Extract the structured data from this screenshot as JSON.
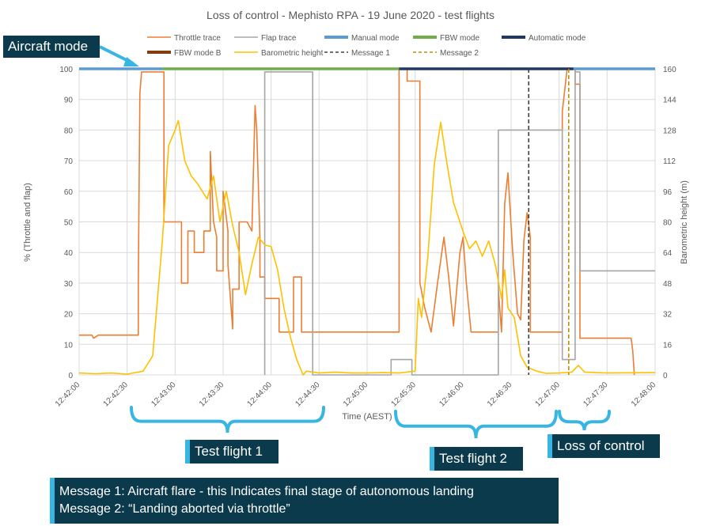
{
  "chart_data": {
    "type": "line",
    "title": "Loss of control - Mephisto RPA - 19 June 2020 - test flights",
    "xlabel": "Time (AEST)",
    "ylabel": "% (Throttle and flap)",
    "y2label": "Barometric height (m)",
    "xlim": [
      "12:42:00",
      "12:48:00"
    ],
    "ylim": [
      0,
      100
    ],
    "y2lim": [
      0,
      160
    ],
    "x_ticks": [
      "12:42:00",
      "12:42:30",
      "12:43:00",
      "12:43:30",
      "12:44:00",
      "12:44:30",
      "12:45:00",
      "12:45:30",
      "12:46:00",
      "12:46:30",
      "12:47:00",
      "12:47:30",
      "12:48:00"
    ],
    "y_ticks": [
      "0",
      "10",
      "20",
      "30",
      "40",
      "50",
      "60",
      "70",
      "80",
      "90",
      "100"
    ],
    "y2_ticks": [
      "0",
      "16",
      "32",
      "48",
      "64",
      "80",
      "96",
      "112",
      "128",
      "144",
      "160"
    ],
    "grid": true,
    "legend_position": "top",
    "series": [
      {
        "name": "Throttle trace",
        "color": "#ed7d31",
        "axis": "left",
        "points": [
          [
            "12:42:00",
            13
          ],
          [
            "12:42:08",
            13
          ],
          [
            "12:42:09",
            12
          ],
          [
            "12:42:12",
            13
          ],
          [
            "12:42:37",
            13
          ],
          [
            "12:42:37",
            30
          ],
          [
            "12:42:38",
            92
          ],
          [
            "12:42:39",
            99
          ],
          [
            "12:42:53",
            99
          ],
          [
            "12:42:53",
            50
          ],
          [
            "12:43:04",
            50
          ],
          [
            "12:43:04",
            30
          ],
          [
            "12:43:08",
            30
          ],
          [
            "12:43:08",
            47
          ],
          [
            "12:43:12",
            47
          ],
          [
            "12:43:12",
            40
          ],
          [
            "12:43:18",
            40
          ],
          [
            "12:43:18",
            47
          ],
          [
            "12:43:22",
            47
          ],
          [
            "12:43:22",
            73
          ],
          [
            "12:43:24",
            50
          ],
          [
            "12:43:26",
            45
          ],
          [
            "12:43:26",
            34
          ],
          [
            "12:43:30",
            34
          ],
          [
            "12:43:30",
            60
          ],
          [
            "12:43:33",
            47
          ],
          [
            "12:43:33",
            36
          ],
          [
            "12:43:36",
            15
          ],
          [
            "12:43:36",
            28
          ],
          [
            "12:43:40",
            28
          ],
          [
            "12:43:40",
            50
          ],
          [
            "12:43:45",
            50
          ],
          [
            "12:43:48",
            47
          ],
          [
            "12:43:50",
            88
          ],
          [
            "12:43:51",
            80
          ],
          [
            "12:43:53",
            45
          ],
          [
            "12:43:53",
            32
          ],
          [
            "12:43:56",
            32
          ],
          [
            "12:43:56",
            25
          ],
          [
            "12:44:05",
            25
          ],
          [
            "12:44:05",
            14
          ],
          [
            "12:44:14",
            14
          ],
          [
            "12:44:14",
            32
          ],
          [
            "12:44:19",
            32
          ],
          [
            "12:44:19",
            14
          ],
          [
            "12:45:20",
            14
          ],
          [
            "12:45:20",
            100
          ],
          [
            "12:45:25",
            100
          ],
          [
            "12:45:25",
            96
          ],
          [
            "12:45:33",
            96
          ],
          [
            "12:45:33",
            30
          ],
          [
            "12:45:36",
            22
          ],
          [
            "12:45:40",
            14
          ],
          [
            "12:45:44",
            30
          ],
          [
            "12:45:48",
            45
          ],
          [
            "12:45:51",
            32
          ],
          [
            "12:45:54",
            16
          ],
          [
            "12:45:58",
            40
          ],
          [
            "12:46:00",
            45
          ],
          [
            "12:46:02",
            30
          ],
          [
            "12:46:05",
            14
          ],
          [
            "12:46:22",
            14
          ],
          [
            "12:46:22",
            28
          ],
          [
            "12:46:24",
            14
          ],
          [
            "12:46:26",
            56
          ],
          [
            "12:46:28",
            66
          ],
          [
            "12:46:31",
            40
          ],
          [
            "12:46:34",
            20
          ],
          [
            "12:46:36",
            18
          ],
          [
            "12:46:38",
            44
          ],
          [
            "12:46:40",
            53
          ],
          [
            "12:46:42",
            45
          ],
          [
            "12:46:42",
            14
          ],
          [
            "12:47:02",
            14
          ],
          [
            "12:47:02",
            86
          ],
          [
            "12:47:05",
            100
          ],
          [
            "12:47:10",
            100
          ],
          [
            "12:47:10",
            95
          ],
          [
            "12:47:13",
            95
          ],
          [
            "12:47:13",
            12
          ],
          [
            "12:47:45",
            12
          ],
          [
            "12:47:46",
            8
          ],
          [
            "12:47:47",
            0
          ]
        ]
      },
      {
        "name": "Flap trace",
        "color": "#a5a5a5",
        "axis": "left",
        "points": [
          [
            "12:43:56",
            0
          ],
          [
            "12:43:56",
            99
          ],
          [
            "12:44:26",
            99
          ],
          [
            "12:44:26",
            0
          ],
          [
            "12:45:15",
            0
          ],
          [
            "12:45:15",
            5
          ],
          [
            "12:45:28",
            5
          ],
          [
            "12:45:28",
            0
          ],
          [
            "12:46:22",
            0
          ],
          [
            "12:46:22",
            80
          ],
          [
            "12:47:02",
            80
          ],
          [
            "12:47:02",
            5
          ],
          [
            "12:47:10",
            5
          ],
          [
            "12:47:10",
            99
          ],
          [
            "12:47:13",
            99
          ],
          [
            "12:47:13",
            34
          ],
          [
            "12:48:00",
            34
          ]
        ]
      },
      {
        "name": "Barometric height",
        "color": "#ffc000",
        "axis": "right",
        "points": [
          [
            "12:42:00",
            1
          ],
          [
            "12:42:10",
            0.6
          ],
          [
            "12:42:20",
            1
          ],
          [
            "12:42:30",
            0.4
          ],
          [
            "12:42:40",
            2
          ],
          [
            "12:42:46",
            10
          ],
          [
            "12:42:52",
            70
          ],
          [
            "12:42:56",
            120
          ],
          [
            "12:43:00",
            128
          ],
          [
            "12:43:02",
            133
          ],
          [
            "12:43:06",
            112
          ],
          [
            "12:43:10",
            104
          ],
          [
            "12:43:14",
            100
          ],
          [
            "12:43:20",
            92
          ],
          [
            "12:43:24",
            104
          ],
          [
            "12:43:28",
            80
          ],
          [
            "12:43:32",
            96
          ],
          [
            "12:43:36",
            78
          ],
          [
            "12:43:40",
            64
          ],
          [
            "12:43:44",
            42
          ],
          [
            "12:43:48",
            58
          ],
          [
            "12:43:52",
            72
          ],
          [
            "12:43:56",
            68
          ],
          [
            "12:44:00",
            67
          ],
          [
            "12:44:04",
            55
          ],
          [
            "12:44:08",
            35
          ],
          [
            "12:44:12",
            20
          ],
          [
            "12:44:16",
            8
          ],
          [
            "12:44:20",
            0
          ],
          [
            "12:44:22",
            2
          ],
          [
            "12:44:30",
            1
          ],
          [
            "12:44:40",
            1.5
          ],
          [
            "12:44:50",
            1
          ],
          [
            "12:45:00",
            1
          ],
          [
            "12:45:10",
            1.2
          ],
          [
            "12:45:20",
            1
          ],
          [
            "12:45:30",
            2
          ],
          [
            "12:45:32",
            40
          ],
          [
            "12:45:34",
            30
          ],
          [
            "12:45:38",
            62
          ],
          [
            "12:45:42",
            110
          ],
          [
            "12:45:46",
            132
          ],
          [
            "12:45:50",
            110
          ],
          [
            "12:45:54",
            90
          ],
          [
            "12:46:00",
            75
          ],
          [
            "12:46:04",
            66
          ],
          [
            "12:46:08",
            70
          ],
          [
            "12:46:12",
            62
          ],
          [
            "12:46:16",
            70
          ],
          [
            "12:46:20",
            58
          ],
          [
            "12:46:24",
            40
          ],
          [
            "12:46:26",
            55
          ],
          [
            "12:46:28",
            35
          ],
          [
            "12:46:32",
            30
          ],
          [
            "12:46:36",
            10
          ],
          [
            "12:46:40",
            4
          ],
          [
            "12:46:46",
            2
          ],
          [
            "12:46:52",
            0.8
          ],
          [
            "12:47:00",
            1
          ],
          [
            "12:47:08",
            1.5
          ],
          [
            "12:47:12",
            5
          ],
          [
            "12:47:16",
            1.5
          ],
          [
            "12:47:30",
            1
          ],
          [
            "12:48:00",
            1.2
          ]
        ]
      }
    ],
    "mode_bar": [
      {
        "name": "Manual mode",
        "color": "#5b9bd5",
        "from": "12:42:00",
        "to": "12:42:52"
      },
      {
        "name": "FBW mode",
        "color": "#70ad47",
        "from": "12:42:52",
        "to": "12:45:20"
      },
      {
        "name": "Automatic mode",
        "color": "#203864",
        "from": "12:45:20",
        "to": "12:47:09"
      },
      {
        "name": "Manual mode",
        "color": "#5b9bd5",
        "from": "12:47:09",
        "to": "12:48:00"
      }
    ],
    "mode_bar_extra": [
      {
        "name": "FBW mode B",
        "color": "#843c0c"
      }
    ],
    "markers": [
      {
        "name": "Message 1",
        "color": "#404040",
        "x": "12:46:41"
      },
      {
        "name": "Message 2",
        "color": "#bf9000",
        "x": "12:47:06"
      }
    ],
    "legend": [
      {
        "name": "Throttle trace",
        "color": "#ed7d31",
        "style": "line"
      },
      {
        "name": "Flap trace",
        "color": "#a5a5a5",
        "style": "line"
      },
      {
        "name": "Manual mode",
        "color": "#5b9bd5",
        "style": "thick"
      },
      {
        "name": "FBW mode",
        "color": "#70ad47",
        "style": "thick"
      },
      {
        "name": "Automatic mode",
        "color": "#203864",
        "style": "thick"
      },
      {
        "name": "FBW mode B",
        "color": "#843c0c",
        "style": "thick"
      },
      {
        "name": "Barometric height",
        "color": "#ffc000",
        "style": "line"
      },
      {
        "name": "Message 1",
        "color": "#404040",
        "style": "dash"
      },
      {
        "name": "Message 2",
        "color": "#bf9000",
        "style": "dash"
      }
    ],
    "annotations": {
      "aircraft_mode": "Aircraft mode",
      "test_flight_1": "Test flight 1",
      "test_flight_2": "Test flight 2",
      "loss_of_control": "Loss of control",
      "brace_color": "#38b6e3",
      "messages": [
        "Message 1: Aircraft flare - this Indicates final stage of autonomous landing",
        "Message 2: “Landing aborted via throttle”"
      ]
    }
  }
}
